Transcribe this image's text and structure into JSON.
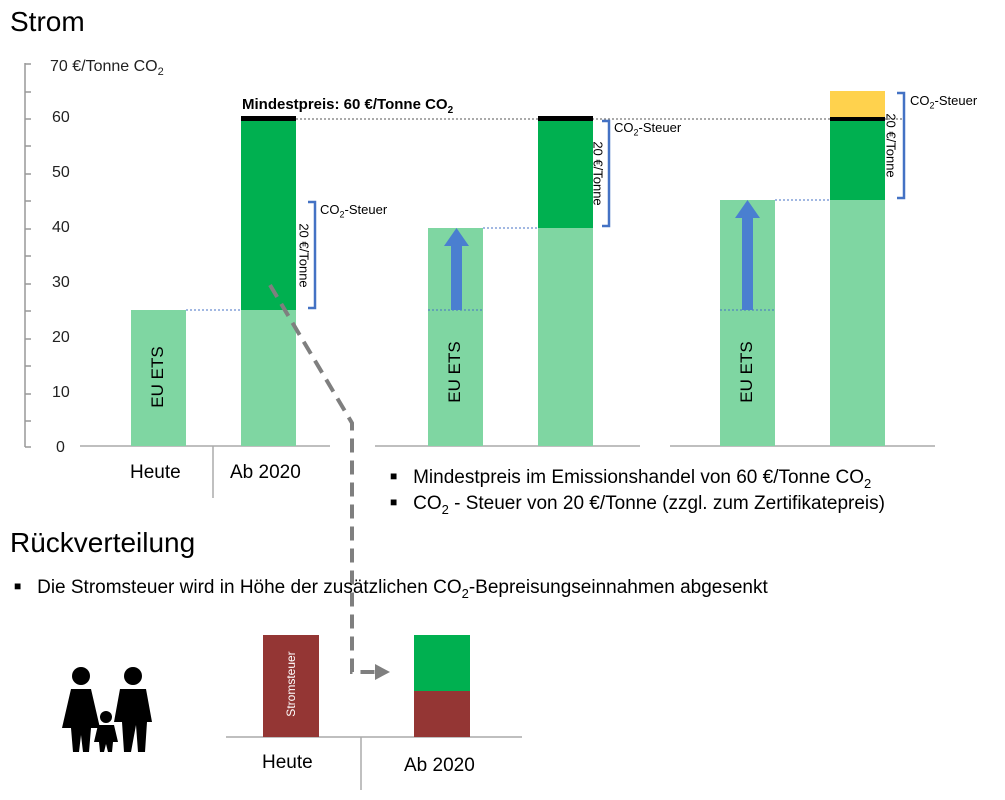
{
  "title": "Strom",
  "y_axis": {
    "unit_label": "70 €/Tonne CO",
    "unit_sub": "2",
    "ticks": [
      "60",
      "50",
      "40",
      "30",
      "20",
      "10",
      "0"
    ]
  },
  "scenarios": {
    "cat_heute": "Heute",
    "cat_ab2020": "Ab 2020"
  },
  "bars": {
    "eu_ets": "EU ETS",
    "co2_steuer": "CO",
    "co2_steuer_sub": "2",
    "co2_steuer_suffix": "-Steuer",
    "twenty_per_tonne": "20 €/Tonne",
    "mindestpreis_prefix": "Mindestpreis: 60 €/Tonne CO",
    "mindestpreis_sub": "2"
  },
  "bullets": [
    {
      "text": "Mindestpreis im Emissionshandel von 60 €/Tonne CO",
      "sub": "2"
    },
    {
      "text_pre": "CO",
      "sub": "2",
      "text": " - Steuer von 20 €/Tonne (zzgl. zum Zertifikatepreis)"
    }
  ],
  "section2": {
    "title": "Rückverteilung",
    "bullet_pre": "Die Stromsteuer wird in Höhe der zusätzlichen CO",
    "bullet_sub": "2",
    "bullet_post": "-Bepreisungseinnahmen abgesenkt",
    "bar_label": "Stromsteuer",
    "cat_heute": "Heute",
    "cat_ab2020": "Ab 2020"
  },
  "colors": {
    "light_green": "#7fd6a2",
    "dark_green": "#00b050",
    "black_cap": "#000000",
    "yellow": "#ffd24d",
    "brace_blue": "#4472c4",
    "arrow_blue": "#4a7fd0",
    "stromsteuer_red": "#943634",
    "dashed_gray": "#7f7f7f"
  },
  "chart_data": {
    "type": "bar",
    "ylabel": "€/Tonne CO2",
    "ylim": [
      0,
      70
    ],
    "categories": [
      "Heute",
      "Ab 2020"
    ],
    "segments": [
      {
        "panel": 1,
        "bar": "Heute",
        "eu_ets": 25
      },
      {
        "panel": 1,
        "bar": "Ab 2020",
        "eu_ets": 25,
        "co2_steuer": 35,
        "mindestpreis": 60
      },
      {
        "panel": 2,
        "bar": "Heute",
        "eu_ets": 25,
        "increase_to": 40
      },
      {
        "panel": 2,
        "bar": "Ab 2020",
        "eu_ets": 40,
        "co2_steuer": 20,
        "mindestpreis": 60
      },
      {
        "panel": 3,
        "bar": "Heute",
        "eu_ets": 25,
        "increase_to": 45
      },
      {
        "panel": 3,
        "bar": "Ab 2020",
        "eu_ets": 45,
        "co2_steuer_to_60": 15,
        "co2_steuer_above_60": 5
      }
    ]
  }
}
